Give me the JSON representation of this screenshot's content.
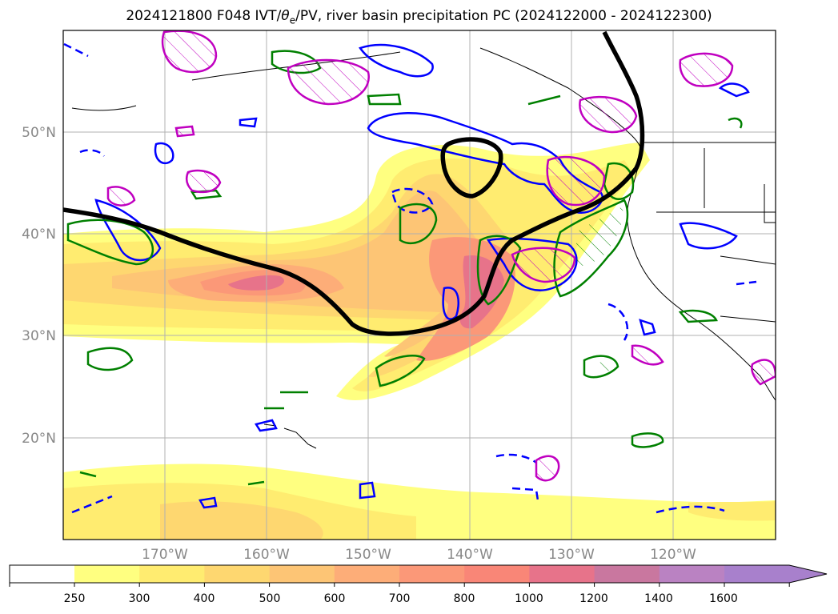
{
  "title": {
    "prefix": "2024121800 F048 IVT/",
    "theta": "θ",
    "theta_sub": "e",
    "suffix": "/PV, river basin precipitation PC (2024122000 - 2024122300)"
  },
  "map": {
    "lat_labels": [
      "50°N",
      "40°N",
      "30°N",
      "20°N"
    ],
    "lon_labels": [
      "170°W",
      "160°W",
      "150°W",
      "140°W",
      "130°W",
      "120°W"
    ],
    "lat_range": [
      10,
      60
    ],
    "lon_range": [
      -180,
      -110
    ],
    "grid": true
  },
  "colorbar": {
    "ticks": [
      "250",
      "300",
      "400",
      "500",
      "600",
      "700",
      "800",
      "1000",
      "1200",
      "1400",
      "1600"
    ],
    "colors": [
      "#ffffff",
      "#ffff80",
      "#ffec70",
      "#fed770",
      "#fdc575",
      "#fdad78",
      "#fb9878",
      "#f98677",
      "#e7738a",
      "#c9779f",
      "#ba82c2",
      "#a880cc"
    ],
    "extend": "max"
  },
  "contour_colors": {
    "theta_e": "#0000ff",
    "precip": "#008000",
    "pv": "#c000c0",
    "jet": "#000000"
  }
}
